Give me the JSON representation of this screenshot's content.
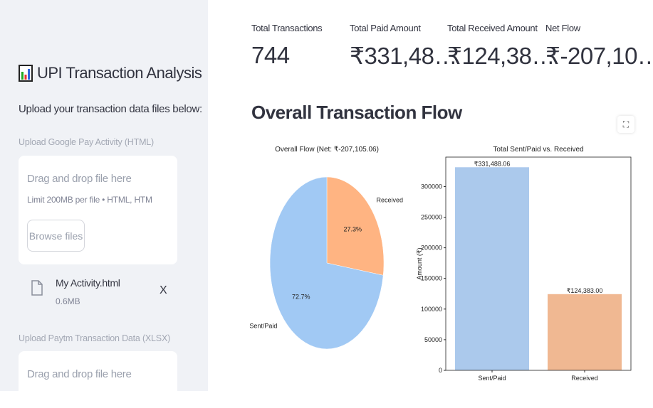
{
  "sidebar": {
    "title": "UPI Transaction Analysis",
    "title_icon": "bar-chart-icon",
    "subtitle": "Upload your transaction data files below:",
    "gpay": {
      "label": "Upload Google Pay Activity (HTML)",
      "drop_text": "Drag and drop file here",
      "limit": "Limit 200MB per file • HTML, HTM",
      "browse": "Browse files",
      "file": {
        "name": "My Activity.html",
        "size": "0.6MB",
        "remove": "X"
      }
    },
    "paytm": {
      "label": "Upload Paytm Transaction Data (XLSX)",
      "drop_text": "Drag and drop file here"
    }
  },
  "metrics": [
    {
      "label": "Total Transactions",
      "value": "744"
    },
    {
      "label": "Total Paid Amount",
      "value": "₹331,48…"
    },
    {
      "label": "Total Received Amount",
      "value": "₹124,38…"
    },
    {
      "label": "Net Flow",
      "value": "₹-207,10…"
    }
  ],
  "section_title": "Overall Transaction Flow",
  "colors": {
    "sent": "#a1c9f4",
    "received": "#ffb482",
    "sent_bar": "#abc9ec",
    "received_bar": "#f0b892"
  },
  "chart_data": [
    {
      "type": "pie",
      "title": "Overall Flow (Net: ₹-207,105.06)",
      "labels": [
        "Sent/Paid",
        "Received"
      ],
      "values": [
        331488.06,
        124383.0
      ],
      "pct_labels": [
        "72.7%",
        "27.3%"
      ],
      "startangle": 90
    },
    {
      "type": "bar",
      "title": "Total Sent/Paid vs. Received",
      "categories": [
        "Sent/Paid",
        "Received"
      ],
      "values": [
        331488.06,
        124383.0
      ],
      "data_labels": [
        "₹331,488.06",
        "₹124,383.00"
      ],
      "ylabel": "Amount (₹)",
      "ylim": [
        0,
        348062
      ],
      "yticks": [
        0,
        50000,
        100000,
        150000,
        200000,
        250000,
        300000
      ]
    }
  ]
}
